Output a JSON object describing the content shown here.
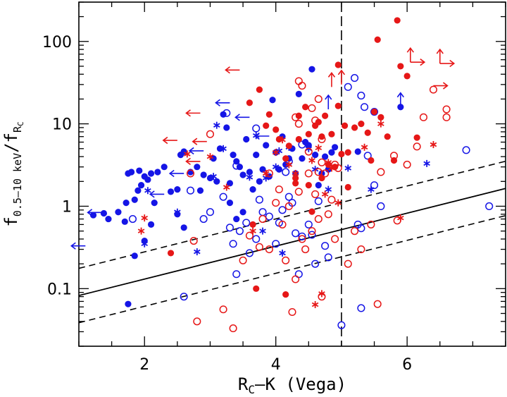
{
  "chart_data": {
    "type": "scatter",
    "title": "",
    "xlabel": {
      "main": "R",
      "sub": "C",
      "rest": "–K (Vega)"
    },
    "ylabel": {
      "main": "f",
      "sub": "0.5–10 keV",
      "slash": "/f",
      "sub2": "R",
      "subsub": "C"
    },
    "xlim": [
      1.0,
      7.5
    ],
    "ylim": [
      0.02,
      300
    ],
    "yscale": "log",
    "xticks": [
      2,
      4,
      6
    ],
    "xtick_labels": [
      "2",
      "4",
      "6"
    ],
    "yticks": [
      0.1,
      1,
      10,
      100
    ],
    "ytick_labels": [
      "0.1",
      "1",
      "10",
      "100"
    ],
    "colors": {
      "blue": "#1515e6",
      "red": "#e61717",
      "axis": "#000000"
    },
    "vline_x": 5.0,
    "relation": {
      "slope_dex_per_mag": 0.2,
      "intercept_at_x0": 0.052,
      "band_dex": 0.33
    },
    "series": [
      {
        "color": "blue",
        "marker": "filled-circle",
        "points": [
          [
            1.22,
            0.78
          ],
          [
            1.38,
            0.82
          ],
          [
            1.45,
            0.7
          ],
          [
            1.6,
            0.85
          ],
          [
            1.72,
            1.1
          ],
          [
            1.75,
            2.5
          ],
          [
            1.8,
            2.6
          ],
          [
            1.85,
            1.2
          ],
          [
            1.9,
            1.55
          ],
          [
            1.92,
            2.7
          ],
          [
            1.95,
            1.8
          ],
          [
            2.0,
            2.3
          ],
          [
            2.05,
            2.1
          ],
          [
            2.1,
            2.5
          ],
          [
            2.2,
            2.6
          ],
          [
            2.3,
            3.0
          ],
          [
            2.4,
            1.5
          ],
          [
            2.5,
            1.6
          ],
          [
            2.55,
            4.2
          ],
          [
            2.6,
            4.6
          ],
          [
            2.7,
            2.6
          ],
          [
            2.8,
            3.0
          ],
          [
            2.9,
            2.4
          ],
          [
            3.0,
            2.2
          ],
          [
            3.05,
            3.8
          ],
          [
            3.1,
            2.0
          ],
          [
            3.15,
            5.0
          ],
          [
            3.2,
            13.0
          ],
          [
            3.25,
            9.0
          ],
          [
            3.3,
            1.1
          ],
          [
            3.35,
            4.2
          ],
          [
            3.4,
            3.5
          ],
          [
            3.45,
            3.0
          ],
          [
            3.5,
            2.4
          ],
          [
            3.55,
            6.5
          ],
          [
            3.6,
            2.6
          ],
          [
            3.65,
            1.6
          ],
          [
            3.7,
            4.2
          ],
          [
            3.75,
            2.0
          ],
          [
            3.8,
            2.8
          ],
          [
            3.85,
            5.5
          ],
          [
            3.9,
            2.3
          ],
          [
            3.95,
            19.5
          ],
          [
            4.0,
            4.5
          ],
          [
            4.05,
            2.8
          ],
          [
            4.1,
            7.0
          ],
          [
            4.15,
            3.2
          ],
          [
            4.2,
            3.8
          ],
          [
            4.25,
            5.0
          ],
          [
            4.3,
            2.5
          ],
          [
            4.35,
            23.0
          ],
          [
            4.4,
            3.8
          ],
          [
            4.45,
            6.0
          ],
          [
            4.5,
            5.5
          ],
          [
            4.55,
            46.0
          ],
          [
            4.6,
            4.2
          ],
          [
            4.65,
            1.8
          ],
          [
            4.7,
            2.5
          ],
          [
            4.75,
            4.0
          ],
          [
            4.8,
            2.8
          ],
          [
            4.85,
            4.5
          ],
          [
            4.9,
            5.2
          ],
          [
            5.25,
            4.6
          ],
          [
            5.9,
            16.0
          ],
          [
            1.75,
            0.065
          ],
          [
            1.85,
            0.25
          ],
          [
            2.0,
            0.38
          ],
          [
            2.1,
            0.6
          ],
          [
            2.5,
            0.8
          ],
          [
            2.6,
            0.55
          ],
          [
            2.85,
            1.55
          ],
          [
            3.3,
            1.9
          ],
          [
            3.4,
            0.7
          ],
          [
            3.5,
            0.85
          ],
          [
            1.7,
            0.65
          ],
          [
            2.15,
            1.1
          ]
        ]
      },
      {
        "color": "blue",
        "marker": "open-circle",
        "points": [
          [
            1.82,
            0.7
          ],
          [
            2.6,
            0.08
          ],
          [
            2.7,
            1.55
          ],
          [
            2.9,
            0.7
          ],
          [
            3.0,
            0.85
          ],
          [
            3.2,
            1.3
          ],
          [
            3.3,
            0.55
          ],
          [
            3.35,
            0.35
          ],
          [
            3.4,
            0.15
          ],
          [
            3.45,
            0.5
          ],
          [
            3.55,
            0.63
          ],
          [
            3.6,
            0.27
          ],
          [
            3.7,
            0.4
          ],
          [
            3.75,
            1.2
          ],
          [
            3.8,
            0.85
          ],
          [
            3.9,
            0.75
          ],
          [
            4.0,
            0.35
          ],
          [
            4.05,
            0.63
          ],
          [
            4.1,
            0.9
          ],
          [
            4.15,
            2.6
          ],
          [
            4.2,
            1.3
          ],
          [
            4.25,
            1.1
          ],
          [
            4.3,
            0.47
          ],
          [
            4.35,
            0.15
          ],
          [
            4.4,
            0.43
          ],
          [
            4.5,
            0.6
          ],
          [
            4.55,
            0.45
          ],
          [
            4.6,
            0.2
          ],
          [
            4.65,
            1.15
          ],
          [
            4.75,
            0.33
          ],
          [
            4.8,
            0.24
          ],
          [
            5.0,
            0.036
          ],
          [
            5.25,
            0.6
          ],
          [
            5.3,
            0.058
          ],
          [
            5.3,
            0.54
          ],
          [
            5.4,
            4.1
          ],
          [
            5.5,
            1.8
          ],
          [
            5.6,
            1.0
          ],
          [
            6.9,
            4.8
          ],
          [
            7.25,
            1.0
          ],
          [
            5.2,
            36.0
          ],
          [
            5.1,
            28.0
          ],
          [
            5.3,
            22.0
          ],
          [
            5.5,
            14.0
          ],
          [
            4.4,
            5.6
          ],
          [
            3.7,
            8.8
          ],
          [
            3.25,
            13.5
          ],
          [
            3.4,
            3.1
          ],
          [
            4.2,
            3.5
          ],
          [
            5.35,
            16.0
          ]
        ]
      },
      {
        "color": "blue",
        "marker": "asterisk",
        "points": [
          [
            2.05,
            1.55
          ],
          [
            2.0,
            0.35
          ],
          [
            2.5,
            0.85
          ],
          [
            2.8,
            0.28
          ],
          [
            3.05,
            2.3
          ],
          [
            3.1,
            9.6
          ],
          [
            3.2,
            5.0
          ],
          [
            3.6,
            2.25
          ],
          [
            3.7,
            7.2
          ],
          [
            3.8,
            0.5
          ],
          [
            3.85,
            2.2
          ],
          [
            4.0,
            3.0
          ],
          [
            4.1,
            0.27
          ],
          [
            4.5,
            5.0
          ],
          [
            4.6,
            2.8
          ],
          [
            4.8,
            1.6
          ],
          [
            5.1,
            2.9
          ],
          [
            5.45,
            1.6
          ],
          [
            6.3,
            3.3
          ],
          [
            4.2,
            5.2
          ],
          [
            4.05,
            4.7
          ]
        ]
      },
      {
        "color": "red",
        "marker": "filled-circle",
        "points": [
          [
            2.4,
            0.27
          ],
          [
            3.7,
            0.1
          ],
          [
            4.15,
            0.085
          ],
          [
            3.6,
            18.0
          ],
          [
            3.75,
            26.0
          ],
          [
            3.9,
            13.0
          ],
          [
            4.0,
            8.5
          ],
          [
            4.05,
            6.5
          ],
          [
            4.15,
            3.8
          ],
          [
            4.2,
            5.4
          ],
          [
            4.3,
            2.2
          ],
          [
            4.35,
            12.5
          ],
          [
            4.45,
            16.0
          ],
          [
            4.5,
            1.8
          ],
          [
            4.5,
            7.5
          ],
          [
            4.55,
            0.86
          ],
          [
            4.6,
            9.5
          ],
          [
            4.7,
            7.0
          ],
          [
            4.75,
            12.5
          ],
          [
            4.8,
            3.2
          ],
          [
            4.85,
            7.5
          ],
          [
            4.9,
            3.0
          ],
          [
            4.95,
            16.5
          ],
          [
            4.95,
            52.0
          ],
          [
            5.05,
            9.5
          ],
          [
            5.1,
            4.5
          ],
          [
            5.2,
            9.0
          ],
          [
            5.3,
            10.0
          ],
          [
            5.4,
            7.8
          ],
          [
            5.45,
            3.6
          ],
          [
            5.5,
            14.0
          ],
          [
            5.55,
            105.0
          ],
          [
            5.6,
            12.0
          ],
          [
            5.7,
            7.0
          ],
          [
            5.8,
            3.6
          ],
          [
            5.85,
            180.0
          ],
          [
            5.9,
            50.0
          ],
          [
            6.0,
            38.0
          ],
          [
            6.15,
            6.8
          ],
          [
            3.65,
            0.6
          ],
          [
            4.3,
            1.9
          ],
          [
            5.1,
            1.7
          ],
          [
            4.7,
            2.2
          ],
          [
            4.35,
            6.5
          ],
          [
            5.0,
            4.3
          ],
          [
            4.65,
            10.5
          ],
          [
            3.85,
            9.5
          ]
        ]
      },
      {
        "color": "red",
        "marker": "open-circle",
        "points": [
          [
            2.7,
            2.5
          ],
          [
            2.75,
            0.38
          ],
          [
            2.8,
            0.04
          ],
          [
            3.2,
            0.056
          ],
          [
            3.35,
            0.033
          ],
          [
            3.5,
            0.22
          ],
          [
            3.6,
            0.44
          ],
          [
            3.75,
            0.32
          ],
          [
            3.8,
            0.7
          ],
          [
            3.9,
            0.3
          ],
          [
            4.0,
            1.1
          ],
          [
            4.05,
            1.6
          ],
          [
            4.1,
            0.6
          ],
          [
            4.15,
            0.22
          ],
          [
            4.2,
            1.0
          ],
          [
            4.25,
            0.052
          ],
          [
            4.3,
            0.13
          ],
          [
            4.35,
            1.5
          ],
          [
            4.4,
            0.4
          ],
          [
            4.45,
            0.3
          ],
          [
            4.5,
            2.5
          ],
          [
            4.55,
            0.5
          ],
          [
            4.6,
            1.4
          ],
          [
            4.65,
            0.7
          ],
          [
            4.7,
            0.08
          ],
          [
            4.75,
            2.5
          ],
          [
            4.8,
            0.8
          ],
          [
            4.85,
            1.2
          ],
          [
            4.9,
            0.4
          ],
          [
            4.95,
            2.9
          ],
          [
            5.1,
            0.2
          ],
          [
            5.2,
            0.5
          ],
          [
            5.3,
            0.3
          ],
          [
            5.45,
            0.6
          ],
          [
            5.6,
            2.6
          ],
          [
            5.85,
            0.67
          ],
          [
            6.15,
            5.3
          ],
          [
            6.25,
            12.0
          ],
          [
            6.6,
            15.0
          ],
          [
            6.6,
            12.0
          ],
          [
            6.0,
            3.2
          ],
          [
            5.8,
            4.1
          ],
          [
            3.0,
            7.5
          ],
          [
            4.3,
            12.0
          ],
          [
            4.35,
            33.0
          ],
          [
            4.4,
            29.0
          ],
          [
            4.65,
            20.0
          ],
          [
            4.55,
            15.5
          ],
          [
            4.6,
            11.0
          ],
          [
            4.7,
            6.5
          ],
          [
            3.9,
            2.5
          ],
          [
            4.5,
            4.6
          ],
          [
            4.65,
            2.6
          ],
          [
            4.7,
            3.4
          ],
          [
            4.9,
            3.2
          ],
          [
            6.4,
            26.0
          ],
          [
            5.55,
            0.065
          ],
          [
            4.35,
            10.0
          ]
        ]
      },
      {
        "color": "red",
        "marker": "asterisk",
        "points": [
          [
            2.0,
            0.72
          ],
          [
            1.95,
            0.5
          ],
          [
            2.65,
            4.3
          ],
          [
            3.0,
            4.0
          ],
          [
            3.25,
            1.7
          ],
          [
            3.65,
            0.5
          ],
          [
            3.85,
            2.5
          ],
          [
            4.0,
            4.5
          ],
          [
            4.2,
            3.2
          ],
          [
            4.3,
            2.5
          ],
          [
            4.55,
            3.6
          ],
          [
            4.65,
            5.1
          ],
          [
            4.75,
            1.4
          ],
          [
            4.8,
            3.4
          ],
          [
            4.95,
            1.1
          ],
          [
            5.35,
            5.2
          ],
          [
            5.6,
            10.0
          ],
          [
            5.9,
            0.72
          ],
          [
            6.4,
            5.6
          ],
          [
            4.7,
            0.087
          ],
          [
            4.6,
            0.064
          ],
          [
            4.85,
            2.9
          ],
          [
            4.1,
            6.4
          ]
        ]
      }
    ],
    "arrows": [
      {
        "color": "red",
        "x": 2.85,
        "y": 13.5,
        "dir": "left"
      },
      {
        "color": "red",
        "x": 3.45,
        "y": 45.0,
        "dir": "left"
      },
      {
        "color": "red",
        "x": 2.5,
        "y": 6.3,
        "dir": "left"
      },
      {
        "color": "red",
        "x": 2.95,
        "y": 6.1,
        "dir": "left"
      },
      {
        "color": "red",
        "x": 2.85,
        "y": 3.5,
        "dir": "left"
      },
      {
        "color": "red",
        "x": 4.85,
        "y": 28.0,
        "dir": "up"
      },
      {
        "color": "red",
        "x": 5.0,
        "y": 30.0,
        "dir": "up"
      },
      {
        "color": "red",
        "x": 6.05,
        "y": 56.0,
        "dir": "up-right"
      },
      {
        "color": "red",
        "x": 6.5,
        "y": 54.0,
        "dir": "up-right"
      },
      {
        "color": "red",
        "x": 6.4,
        "y": 29.0,
        "dir": "right"
      },
      {
        "color": "blue",
        "x": 3.3,
        "y": 18.0,
        "dir": "left"
      },
      {
        "color": "blue",
        "x": 3.6,
        "y": 12.0,
        "dir": "left"
      },
      {
        "color": "blue",
        "x": 3.9,
        "y": 7.1,
        "dir": "left"
      },
      {
        "color": "blue",
        "x": 2.6,
        "y": 2.5,
        "dir": "left"
      },
      {
        "color": "blue",
        "x": 2.3,
        "y": 1.4,
        "dir": "left"
      },
      {
        "color": "blue",
        "x": 1.35,
        "y": 0.84,
        "dir": "left"
      },
      {
        "color": "blue",
        "x": 1.1,
        "y": 0.33,
        "dir": "left"
      },
      {
        "color": "blue",
        "x": 2.9,
        "y": 4.7,
        "dir": "left"
      },
      {
        "color": "blue",
        "x": 5.9,
        "y": 16.0,
        "dir": "up"
      },
      {
        "color": "blue",
        "x": 4.8,
        "y": 15.0,
        "dir": "up"
      }
    ]
  }
}
